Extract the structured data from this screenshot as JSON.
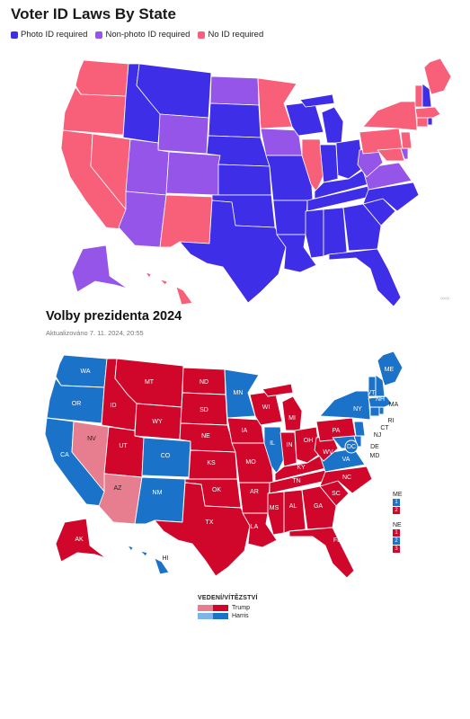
{
  "map1": {
    "title": "Voter ID Laws By State",
    "legend": [
      {
        "label": "Photo ID required",
        "color": "#3f2ee8"
      },
      {
        "label": "Non-photo ID required",
        "color": "#9455e8"
      },
      {
        "label": "No ID required",
        "color": "#f8607a"
      }
    ],
    "more_icon": "dots-icon",
    "more_text": "∞∞"
  },
  "map2": {
    "title": "Volby prezidenta 2024",
    "updated": "Aktualizováno 7. 11. 2024, 20:55",
    "colors": {
      "trump": "#d0062a",
      "trump_light": "#e77e90",
      "harris": "#1a73c9",
      "harris_light": "#7fb4e8"
    },
    "state_labels": [
      "WA",
      "OR",
      "CA",
      "NV",
      "ID",
      "MT",
      "WY",
      "UT",
      "AZ",
      "CO",
      "NM",
      "ND",
      "SD",
      "NE",
      "KS",
      "OK",
      "TX",
      "MN",
      "IA",
      "MO",
      "AR",
      "LA",
      "WI",
      "IL",
      "MI",
      "IN",
      "OH",
      "KY",
      "TN",
      "MS",
      "AL",
      "GA",
      "FL",
      "SC",
      "NC",
      "VA",
      "WV",
      "PA",
      "NY",
      "VT",
      "NH",
      "ME",
      "MA",
      "RI",
      "CT",
      "NJ",
      "DE",
      "MD",
      "DC",
      "AK",
      "HI"
    ],
    "me_label": "ME",
    "me_districts": [
      {
        "n": "1",
        "winner": "harris"
      },
      {
        "n": "2",
        "winner": "trump"
      }
    ],
    "ne_label": "NE",
    "ne_districts": [
      {
        "n": "1",
        "winner": "trump"
      },
      {
        "n": "2",
        "winner": "harris"
      },
      {
        "n": "3",
        "winner": "trump"
      }
    ],
    "legend_title": "VEDENÍ/VÍTĚZSTVÍ",
    "legend_rows": [
      {
        "label": "Trump"
      },
      {
        "label": "Harris"
      }
    ]
  }
}
